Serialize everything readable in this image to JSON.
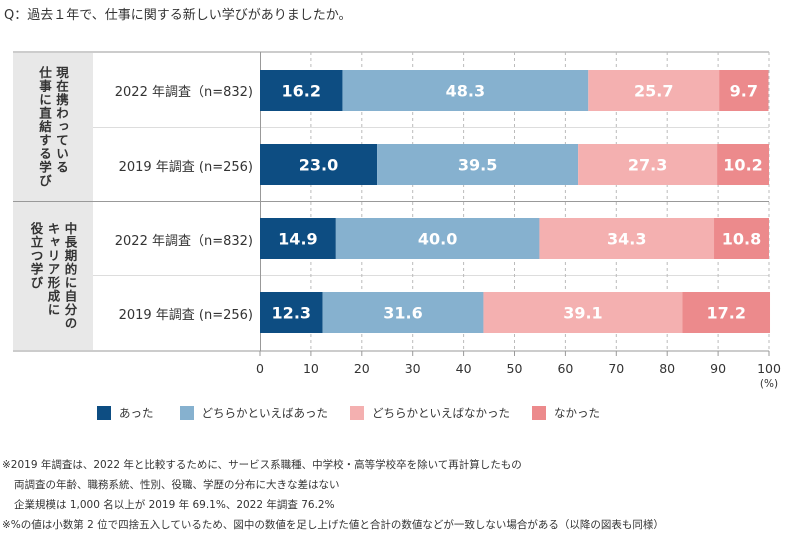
{
  "question": "Q：過去１年で、仕事に関する新しい学びがありましたか。",
  "colors": {
    "atta": "#0d4d82",
    "dochira_atta": "#86b1cf",
    "dochira_nakatta": "#f4b0b0",
    "nakatta": "#ec8a8c",
    "group_bg": "#e8e8e8"
  },
  "groups": [
    {
      "label": "現在携わっている 仕事に直結する学び",
      "col1": "現在携わっている",
      "col2": "仕事に直結する学び"
    },
    {
      "label": "中長期的に自分の キャリア形成に 役立つ学び",
      "col1": "中長期的に自分の",
      "col2": "キャリア形成に",
      "col3": "役立つ学び"
    }
  ],
  "chart_data": {
    "type": "bar",
    "orientation": "horizontal-stacked-100",
    "categories": [
      "2022 年調査（n=832)",
      "2019 年調査 (n=256)",
      "2022 年調査（n=832)",
      "2019 年調査 (n=256)"
    ],
    "series": [
      {
        "name": "あった",
        "values": [
          16.2,
          23.0,
          14.9,
          12.3
        ]
      },
      {
        "name": "どちらかといえばあった",
        "values": [
          48.3,
          39.5,
          40.0,
          31.6
        ]
      },
      {
        "name": "どちらかといえばなかった",
        "values": [
          25.7,
          27.3,
          34.3,
          39.1
        ]
      },
      {
        "name": "なかった",
        "values": [
          9.7,
          10.2,
          10.8,
          17.2
        ]
      }
    ],
    "xlim": [
      0,
      100
    ],
    "xticks": [
      "0",
      "10",
      "20",
      "30",
      "40",
      "50",
      "60",
      "70",
      "80",
      "90",
      "100"
    ],
    "xunit": "(%)",
    "grid": true,
    "legend": "bottom"
  },
  "notes": [
    "※2019 年調査は、2022 年と比較するために、サービス系職種、中学校・高等学校卒を除いて再計算したもの",
    "両調査の年齢、職務系統、性別、役職、学歴の分布に大きな差はない",
    "企業規模は 1,000 名以上が 2019 年 69.1%、2022 年調査 76.2%",
    "※%の値は小数第 2 位で四捨五入しているため、図中の数値を足し上げた値と合計の数値などが一致しない場合がある（以降の図表も同様）"
  ]
}
